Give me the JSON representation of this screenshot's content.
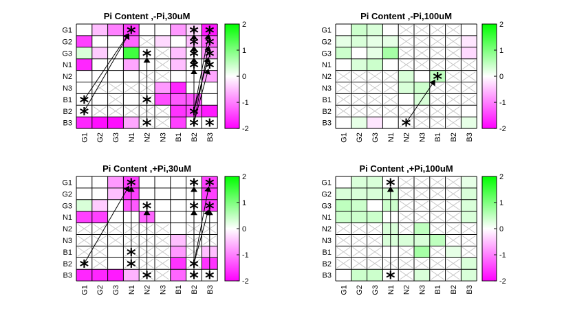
{
  "figure": {
    "background": "#ffffff"
  },
  "colormap": {
    "low": "#ff00ff",
    "mid": "#ffffff",
    "high": "#00ff00",
    "clim": [
      -2,
      2
    ]
  },
  "chart_data": [
    {
      "type": "heatmap",
      "title": "Pi Content ,-Pi,30uM",
      "rows": [
        "G1",
        "G2",
        "G3",
        "N1",
        "N2",
        "N3",
        "B1",
        "B2",
        "B3"
      ],
      "cols": [
        "G1",
        "G2",
        "G3",
        "N1",
        "N2",
        "N3",
        "B1",
        "B2",
        "B3"
      ],
      "values": [
        [
          0,
          -0.5,
          -1,
          -1.5,
          0,
          0,
          -0.8,
          -0.3,
          -1.8
        ],
        [
          -1.5,
          0,
          0,
          -1.2,
          0,
          -0.3,
          0,
          -0.5,
          -1.2
        ],
        [
          0.3,
          -0.4,
          0,
          1.5,
          0,
          0,
          -0.5,
          0,
          -0.8
        ],
        [
          -1.7,
          0,
          0,
          -0.7,
          0,
          0,
          -0.5,
          0,
          0
        ],
        [
          0,
          0,
          0,
          0,
          0,
          0,
          0,
          0,
          -0.7
        ],
        [
          0,
          0,
          0,
          0,
          0,
          -0.8,
          -1.7,
          0,
          0
        ],
        [
          0,
          0,
          0,
          0,
          0,
          -1.4,
          -1.3,
          -1.3,
          0
        ],
        [
          0,
          0,
          0,
          0,
          0,
          0,
          -1.6,
          -1.4,
          -1.8
        ],
        [
          -1.7,
          -1.9,
          -1.9,
          -0.7,
          0,
          0,
          -1.5,
          0,
          0
        ]
      ],
      "crossed": [
        [
          4,
          4
        ],
        [
          4,
          5
        ],
        [
          5,
          1
        ],
        [
          5,
          2
        ],
        [
          5,
          3
        ],
        [
          5,
          4
        ],
        [
          6,
          2
        ],
        [
          6,
          4
        ],
        [
          7,
          1
        ],
        [
          7,
          2
        ],
        [
          7,
          3
        ],
        [
          7,
          4
        ],
        [
          7,
          5
        ],
        [
          8,
          4
        ],
        [
          8,
          5
        ],
        [
          3,
          5
        ],
        [
          2,
          5
        ],
        [
          1,
          4
        ]
      ],
      "stars": [
        [
          0,
          3
        ],
        [
          6,
          0
        ],
        [
          7,
          0
        ],
        [
          6,
          4
        ],
        [
          8,
          4
        ],
        [
          2,
          4
        ],
        [
          0,
          7
        ],
        [
          1,
          7
        ],
        [
          2,
          7
        ],
        [
          3,
          7
        ],
        [
          0,
          8
        ],
        [
          1,
          8
        ],
        [
          2,
          8
        ],
        [
          3,
          8
        ],
        [
          8,
          7
        ],
        [
          8,
          8
        ],
        [
          7,
          7
        ]
      ],
      "arrows": [
        [
          6,
          0,
          0,
          3
        ],
        [
          7,
          0,
          0,
          3
        ],
        [
          8,
          4,
          2,
          4
        ],
        [
          8,
          7,
          0,
          7
        ],
        [
          7,
          7,
          1,
          7
        ],
        [
          8,
          7,
          2,
          7
        ],
        [
          7,
          7,
          3,
          7
        ],
        [
          7,
          7,
          0,
          8
        ],
        [
          8,
          7,
          1,
          8
        ],
        [
          7,
          7,
          2,
          8
        ],
        [
          8,
          7,
          3,
          8
        ],
        [
          7,
          7,
          2,
          8
        ]
      ],
      "clim": [
        -2,
        2
      ],
      "colorbar_ticks": [
        2,
        1,
        0,
        -1,
        -2
      ]
    },
    {
      "type": "heatmap",
      "title": "Pi Content ,-Pi,100uM",
      "rows": [
        "G1",
        "G2",
        "G3",
        "N1",
        "N2",
        "N3",
        "B1",
        "B2",
        "B3"
      ],
      "cols": [
        "G1",
        "G2",
        "G3",
        "N1",
        "N2",
        "N3",
        "B1",
        "B2",
        "B3"
      ],
      "values": [
        [
          0,
          0.4,
          0.3,
          0,
          0,
          0,
          0,
          0,
          0
        ],
        [
          0.2,
          0.3,
          0.2,
          0.2,
          0,
          0,
          0,
          0,
          -0.2
        ],
        [
          0.4,
          0,
          0.2,
          0.7,
          0,
          0,
          0,
          0,
          -0.3
        ],
        [
          0,
          0.3,
          0.4,
          0,
          0,
          0,
          0,
          0,
          0
        ],
        [
          0,
          0,
          0,
          0,
          0.3,
          0,
          0.5,
          0,
          0
        ],
        [
          0,
          0,
          0,
          0,
          0.3,
          0.4,
          0,
          0,
          0
        ],
        [
          0,
          0,
          0,
          0,
          0,
          0.3,
          0,
          0,
          0
        ],
        [
          0,
          0,
          0,
          0,
          0,
          0,
          0,
          0,
          0
        ],
        [
          0,
          0.2,
          -0.2,
          0,
          0,
          0,
          0,
          0,
          0.2
        ]
      ],
      "crossed": [
        [
          0,
          4
        ],
        [
          0,
          5
        ],
        [
          0,
          6
        ],
        [
          0,
          7
        ],
        [
          1,
          4
        ],
        [
          1,
          5
        ],
        [
          1,
          6
        ],
        [
          1,
          7
        ],
        [
          2,
          4
        ],
        [
          2,
          5
        ],
        [
          2,
          6
        ],
        [
          2,
          7
        ],
        [
          3,
          4
        ],
        [
          3,
          5
        ],
        [
          3,
          6
        ],
        [
          3,
          7
        ],
        [
          3,
          8
        ],
        [
          4,
          0
        ],
        [
          4,
          1
        ],
        [
          4,
          2
        ],
        [
          4,
          3
        ],
        [
          4,
          7
        ],
        [
          4,
          8
        ],
        [
          5,
          0
        ],
        [
          5,
          1
        ],
        [
          5,
          2
        ],
        [
          5,
          3
        ],
        [
          5,
          6
        ],
        [
          5,
          7
        ],
        [
          5,
          8
        ],
        [
          6,
          0
        ],
        [
          6,
          1
        ],
        [
          6,
          2
        ],
        [
          6,
          3
        ],
        [
          6,
          6
        ],
        [
          6,
          7
        ],
        [
          6,
          8
        ],
        [
          7,
          0
        ],
        [
          7,
          1
        ],
        [
          7,
          2
        ],
        [
          7,
          3
        ],
        [
          7,
          4
        ],
        [
          7,
          5
        ],
        [
          7,
          6
        ],
        [
          7,
          7
        ],
        [
          8,
          4
        ],
        [
          8,
          5
        ],
        [
          8,
          6
        ],
        [
          8,
          7
        ]
      ],
      "stars": [
        [
          8,
          4
        ],
        [
          4,
          6
        ]
      ],
      "arrows": [
        [
          8,
          4,
          4,
          6
        ]
      ],
      "clim": [
        -2,
        2
      ],
      "colorbar_ticks": [
        2,
        1,
        0,
        -1,
        -2
      ]
    },
    {
      "type": "heatmap",
      "title": "Pi Content ,+Pi,30uM",
      "rows": [
        "G1",
        "G2",
        "G3",
        "N1",
        "N2",
        "N3",
        "B1",
        "B2",
        "B3"
      ],
      "cols": [
        "G1",
        "G2",
        "G3",
        "N1",
        "N2",
        "N3",
        "B1",
        "B2",
        "B3"
      ],
      "values": [
        [
          0,
          0,
          -0.8,
          -1.5,
          0,
          0,
          0,
          0,
          -1.5
        ],
        [
          0,
          0,
          -0.5,
          -1.5,
          0,
          0,
          0,
          0,
          -1.5
        ],
        [
          0.3,
          -0.4,
          0,
          -1.3,
          0,
          0,
          0,
          0,
          -1.5
        ],
        [
          -1.5,
          -1.5,
          0,
          0,
          -1.2,
          0,
          0,
          0,
          0
        ],
        [
          0,
          0,
          0,
          0,
          0,
          0,
          0,
          0,
          0
        ],
        [
          0,
          0,
          0,
          0,
          0,
          0,
          -0.5,
          0,
          0
        ],
        [
          0,
          0,
          0,
          0,
          0,
          0,
          -0.8,
          0,
          -0.5
        ],
        [
          0,
          0,
          0,
          0,
          0,
          0,
          -1.6,
          0,
          -1.6
        ],
        [
          -1.7,
          -1.7,
          -1.8,
          -0.6,
          0,
          0,
          -1.2,
          0,
          0
        ]
      ],
      "crossed": [
        [
          4,
          0
        ],
        [
          4,
          1
        ],
        [
          4,
          2
        ],
        [
          4,
          3
        ],
        [
          4,
          4
        ],
        [
          4,
          5
        ],
        [
          4,
          7
        ],
        [
          4,
          8
        ],
        [
          5,
          0
        ],
        [
          5,
          1
        ],
        [
          5,
          2
        ],
        [
          5,
          3
        ],
        [
          5,
          4
        ],
        [
          5,
          5
        ],
        [
          5,
          7
        ],
        [
          5,
          8
        ],
        [
          6,
          0
        ],
        [
          6,
          1
        ],
        [
          6,
          3
        ],
        [
          6,
          4
        ],
        [
          6,
          5
        ],
        [
          6,
          7
        ],
        [
          7,
          1
        ],
        [
          7,
          3
        ],
        [
          7,
          4
        ],
        [
          7,
          5
        ],
        [
          7,
          7
        ],
        [
          8,
          4
        ],
        [
          8,
          5
        ]
      ],
      "stars": [
        [
          0,
          3
        ],
        [
          7,
          0
        ],
        [
          6,
          3
        ],
        [
          7,
          3
        ],
        [
          2,
          4
        ],
        [
          8,
          4
        ],
        [
          0,
          7
        ],
        [
          2,
          7
        ],
        [
          7,
          7
        ],
        [
          8,
          7
        ],
        [
          0,
          8
        ],
        [
          2,
          8
        ],
        [
          8,
          8
        ]
      ],
      "arrows": [
        [
          7,
          0,
          0,
          3
        ],
        [
          7,
          3,
          0,
          3
        ],
        [
          8,
          4,
          2,
          4
        ],
        [
          8,
          7,
          0,
          7
        ],
        [
          8,
          7,
          2,
          7
        ],
        [
          7,
          7,
          0,
          8
        ],
        [
          7,
          7,
          2,
          8
        ],
        [
          8,
          8,
          2,
          8
        ]
      ],
      "clim": [
        -2,
        2
      ],
      "colorbar_ticks": [
        2,
        1,
        0,
        -1,
        -2
      ]
    },
    {
      "type": "heatmap",
      "title": "Pi Content ,+Pi,100uM",
      "rows": [
        "G1",
        "G2",
        "G3",
        "N1",
        "N2",
        "N3",
        "B1",
        "B2",
        "B3"
      ],
      "cols": [
        "G1",
        "G2",
        "G3",
        "N1",
        "N2",
        "N3",
        "B1",
        "B2",
        "B3"
      ],
      "values": [
        [
          0,
          0.3,
          0.3,
          0,
          0,
          0,
          0,
          0,
          0.2
        ],
        [
          0.3,
          0.3,
          0.3,
          0.3,
          0,
          0,
          0,
          0,
          0.3
        ],
        [
          0.5,
          0.4,
          0,
          0.4,
          0,
          0,
          0,
          0,
          0.3
        ],
        [
          0.4,
          0.4,
          0.4,
          0,
          0,
          0,
          0,
          0,
          0.3
        ],
        [
          0,
          0,
          0,
          0.3,
          0,
          0.5,
          0,
          0,
          0
        ],
        [
          0,
          0,
          0,
          0.3,
          0.3,
          0.3,
          0.5,
          0,
          0
        ],
        [
          0,
          0,
          0,
          0,
          0,
          0.7,
          0,
          0.2,
          0
        ],
        [
          0,
          0,
          0,
          0,
          0,
          0,
          0,
          0,
          0.3
        ],
        [
          0,
          0.4,
          0.4,
          0,
          0,
          0.3,
          0,
          0,
          0.3
        ]
      ],
      "crossed": [
        [
          0,
          4
        ],
        [
          0,
          5
        ],
        [
          0,
          6
        ],
        [
          0,
          7
        ],
        [
          1,
          4
        ],
        [
          1,
          5
        ],
        [
          1,
          6
        ],
        [
          1,
          7
        ],
        [
          2,
          4
        ],
        [
          2,
          5
        ],
        [
          2,
          6
        ],
        [
          2,
          7
        ],
        [
          3,
          4
        ],
        [
          3,
          5
        ],
        [
          3,
          6
        ],
        [
          3,
          7
        ],
        [
          4,
          0
        ],
        [
          4,
          1
        ],
        [
          4,
          2
        ],
        [
          4,
          4
        ],
        [
          4,
          6
        ],
        [
          4,
          7
        ],
        [
          4,
          8
        ],
        [
          5,
          0
        ],
        [
          5,
          1
        ],
        [
          5,
          2
        ],
        [
          5,
          7
        ],
        [
          5,
          8
        ],
        [
          6,
          0
        ],
        [
          6,
          1
        ],
        [
          6,
          2
        ],
        [
          6,
          4
        ],
        [
          6,
          6
        ],
        [
          6,
          8
        ],
        [
          7,
          0
        ],
        [
          7,
          1
        ],
        [
          7,
          2
        ],
        [
          7,
          3
        ],
        [
          7,
          4
        ],
        [
          7,
          5
        ],
        [
          7,
          6
        ],
        [
          7,
          7
        ],
        [
          8,
          4
        ],
        [
          8,
          6
        ],
        [
          8,
          7
        ]
      ],
      "stars": [
        [
          8,
          3
        ],
        [
          0,
          3
        ]
      ],
      "arrows": [
        [
          8,
          3,
          0,
          3
        ]
      ],
      "clim": [
        -2,
        2
      ],
      "colorbar_ticks": [
        2,
        1,
        0,
        -1,
        -2
      ]
    }
  ]
}
